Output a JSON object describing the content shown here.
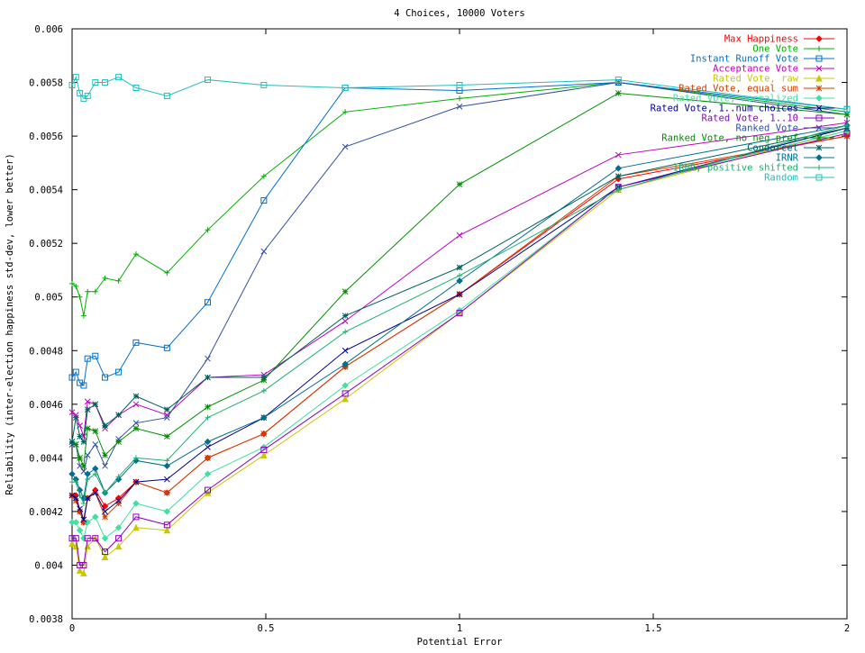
{
  "chart_data": {
    "type": "line",
    "title": "4 Choices, 10000 Voters",
    "xlabel": "Potential Error",
    "ylabel": "Reliability (inter-election happiness std-dev, lower better)",
    "xlim": [
      0,
      2
    ],
    "ylim": [
      0.0038,
      0.006
    ],
    "xticks": [
      "0",
      "0.5",
      "1",
      "1.5",
      "2"
    ],
    "yticks": [
      "0.0038",
      "0.004",
      "0.0042",
      "0.0044",
      "0.0046",
      "0.0048",
      "0.005",
      "0.0052",
      "0.0054",
      "0.0056",
      "0.0058",
      "0.006"
    ],
    "grid": false,
    "legend_position": "top-right",
    "x": [
      0,
      0.01,
      0.02,
      0.03,
      0.04,
      0.06,
      0.085,
      0.12,
      0.165,
      0.245,
      0.35,
      0.495,
      0.705,
      1.0,
      1.41,
      2.0
    ],
    "series": [
      {
        "name": "Max Happiness",
        "color": "#ff0000",
        "marker": "diamond",
        "values": [
          0.00426,
          0.00426,
          0.0042,
          0.00416,
          0.00425,
          0.00428,
          0.00422,
          0.00425,
          0.00431,
          0.00427,
          0.0044,
          0.00449,
          0.00474,
          0.00501,
          0.00544,
          0.0056
        ]
      },
      {
        "name": "One Vote",
        "color": "#00b000",
        "marker": "plus",
        "values": [
          0.00505,
          0.00504,
          0.005,
          0.00493,
          0.00502,
          0.00502,
          0.00507,
          0.00506,
          0.00516,
          0.00509,
          0.00525,
          0.00545,
          0.00569,
          0.00574,
          0.0058,
          0.00569
        ]
      },
      {
        "name": "Instant Runoff Vote",
        "color": "#0070d0",
        "marker": "square",
        "values": [
          0.0047,
          0.00472,
          0.00468,
          0.00467,
          0.00477,
          0.00478,
          0.0047,
          0.00472,
          0.00483,
          0.00481,
          0.00498,
          0.00536,
          0.00578,
          0.00577,
          0.0058,
          0.0057
        ]
      },
      {
        "name": "Acceptance Vote",
        "color": "#c000c0",
        "marker": "x",
        "values": [
          0.00457,
          0.00456,
          0.00452,
          0.00448,
          0.00461,
          0.0046,
          0.00451,
          0.00456,
          0.0046,
          0.00456,
          0.0047,
          0.00471,
          0.00491,
          0.00523,
          0.00553,
          0.00565
        ]
      },
      {
        "name": "Rated Vote, raw",
        "color": "#c8c800",
        "marker": "triangle",
        "values": [
          0.00408,
          0.00407,
          0.00398,
          0.00397,
          0.00407,
          0.0041,
          0.00403,
          0.00407,
          0.00414,
          0.00413,
          0.00427,
          0.00441,
          0.00462,
          0.00494,
          0.0054,
          0.00562
        ]
      },
      {
        "name": "Rated Vote, equal sum",
        "color": "#d04000",
        "marker": "star",
        "values": [
          0.00426,
          0.00424,
          0.0042,
          0.00416,
          0.00425,
          0.00427,
          0.00418,
          0.00423,
          0.00431,
          0.00427,
          0.0044,
          0.00449,
          0.00474,
          0.00501,
          0.00545,
          0.0056
        ]
      },
      {
        "name": "Rated Vote, normalized",
        "color": "#40e0a0",
        "marker": "diamond",
        "values": [
          0.00416,
          0.00416,
          0.00413,
          0.0041,
          0.00416,
          0.00418,
          0.0041,
          0.00414,
          0.00423,
          0.0042,
          0.00434,
          0.00444,
          0.00467,
          0.00495,
          0.00541,
          0.00562
        ]
      },
      {
        "name": "Rated Vote, 1..num choices",
        "color": "#000090",
        "marker": "x",
        "values": [
          0.00426,
          0.00425,
          0.00421,
          0.00417,
          0.00425,
          0.00427,
          0.0042,
          0.00424,
          0.00431,
          0.00432,
          0.00444,
          0.00455,
          0.0048,
          0.00501,
          0.00541,
          0.00563
        ]
      },
      {
        "name": "Rated Vote, 1..10",
        "color": "#9000c0",
        "marker": "square",
        "values": [
          0.0041,
          0.0041,
          0.004,
          0.004,
          0.0041,
          0.0041,
          0.00405,
          0.0041,
          0.00418,
          0.00415,
          0.00428,
          0.00443,
          0.00464,
          0.00494,
          0.00541,
          0.00561
        ]
      },
      {
        "name": "Ranked Vote",
        "color": "#3050a0",
        "marker": "x",
        "values": [
          0.00445,
          0.00445,
          0.00437,
          0.00435,
          0.00441,
          0.00445,
          0.00437,
          0.00447,
          0.00453,
          0.00455,
          0.00477,
          0.00517,
          0.00556,
          0.00571,
          0.0058,
          0.00568
        ]
      },
      {
        "name": "Ranked Vote, no neg pref",
        "color": "#009000",
        "marker": "star",
        "values": [
          0.00446,
          0.00445,
          0.0044,
          0.00437,
          0.00451,
          0.0045,
          0.00441,
          0.00446,
          0.00451,
          0.00448,
          0.00459,
          0.00469,
          0.00502,
          0.00542,
          0.00576,
          0.00568
        ]
      },
      {
        "name": "Condorcet",
        "color": "#006060",
        "marker": "star",
        "values": [
          0.00446,
          0.00455,
          0.00448,
          0.00446,
          0.00458,
          0.0046,
          0.00452,
          0.00456,
          0.00463,
          0.00458,
          0.0047,
          0.0047,
          0.00493,
          0.00511,
          0.00545,
          0.00563
        ]
      },
      {
        "name": "IRNR",
        "color": "#007090",
        "marker": "diamond",
        "values": [
          0.00434,
          0.00432,
          0.00428,
          0.00425,
          0.00434,
          0.00436,
          0.00427,
          0.00432,
          0.00439,
          0.00437,
          0.00446,
          0.00455,
          0.00475,
          0.00506,
          0.00548,
          0.00564
        ]
      },
      {
        "name": "IRNR, positive shifted",
        "color": "#20b070",
        "marker": "plus",
        "values": [
          0.00431,
          0.00431,
          0.00426,
          0.00423,
          0.00432,
          0.00434,
          0.00427,
          0.00433,
          0.0044,
          0.00439,
          0.00455,
          0.00465,
          0.00487,
          0.00508,
          0.0054,
          0.00564
        ]
      },
      {
        "name": "Random",
        "color": "#20c0c0",
        "marker": "square",
        "values": [
          0.00579,
          0.00582,
          0.00576,
          0.00574,
          0.00575,
          0.0058,
          0.0058,
          0.00582,
          0.00578,
          0.00575,
          0.00581,
          0.00579,
          0.00578,
          0.00579,
          0.00581,
          0.0057
        ]
      }
    ]
  }
}
